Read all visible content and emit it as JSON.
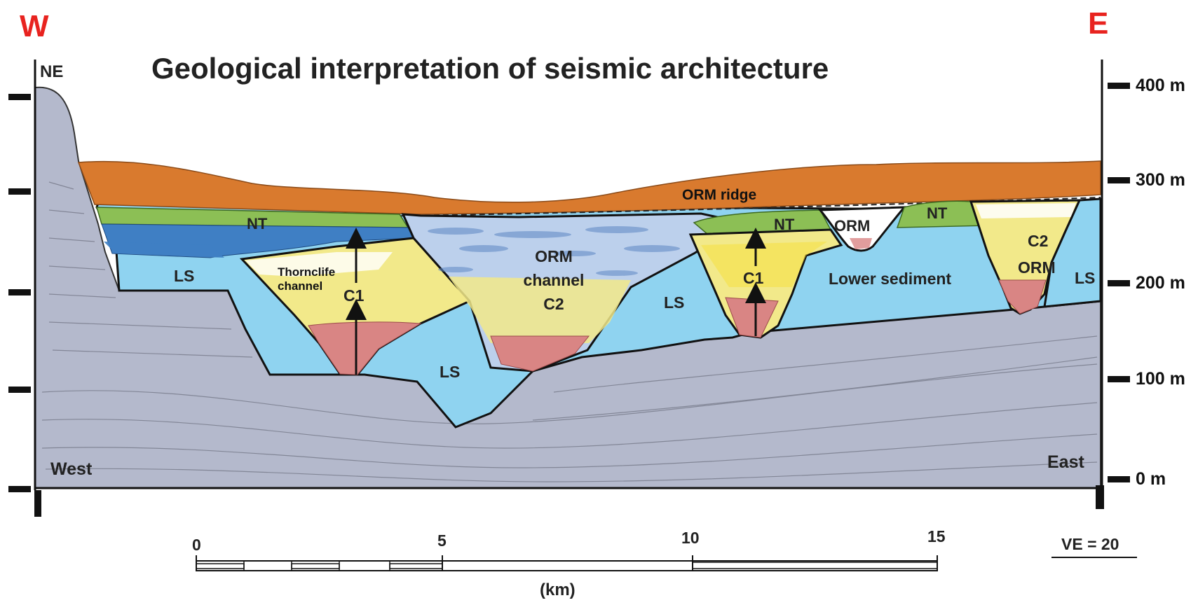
{
  "compass": {
    "west": "W",
    "east": "E"
  },
  "title": "Geological interpretation of seismic architecture",
  "corner_labels": {
    "ne": "NE",
    "west": "West",
    "east": "East"
  },
  "units": {
    "orm_ridge": "ORM ridge",
    "nt_left": "NT",
    "nt_mid": "NT",
    "nt_right": "NT",
    "orm_small": "ORM",
    "orm_right": "ORM",
    "ls_left": "LS",
    "ls_center": "LS",
    "ls_mid": "LS",
    "ls_right": "LS",
    "thorncliffe": "Thornclife\nchannel",
    "c1_left": "C1",
    "c1_mid": "C1",
    "orm_channel": "ORM\nchannel\nC2",
    "c2_right": "C2",
    "lower_sediment": "Lower sediment"
  },
  "elevation_scale": [
    "400 m",
    "300 m",
    "200 m",
    "100 m",
    "0 m"
  ],
  "distance_scale": {
    "ticks": [
      "0",
      "5",
      "10",
      "15"
    ],
    "unit": "(km)"
  },
  "vertical_exaggeration": "VE = 20",
  "colors": {
    "bedrock": "#b4b9cc",
    "lower_sediment": "#8fd3f0",
    "surface_till": "#d97a2e",
    "nt": "#8cbf55",
    "blue_band": "#3f7fc4",
    "yellow_fill": "#f2e98a",
    "red_base": "#d98584",
    "orm_channel": "#bcd0ec",
    "compass": "#e8231f"
  }
}
